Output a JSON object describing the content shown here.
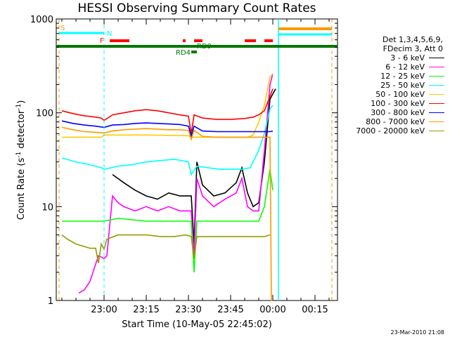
{
  "chart_data": {
    "type": "line",
    "title": "HESSI Observing Summary Count Rates",
    "xlabel": "Start Time (10-May-05 22:45:02)",
    "ylabel_main": "Count Rate (s",
    "ylabel_sup1": "-1",
    "ylabel_mid": " detector",
    "ylabel_sup2": "-1",
    "ylabel_end": ")",
    "yscale": "log",
    "ylim": [
      1,
      1000
    ],
    "y_ticks": [
      "1",
      "10",
      "100",
      "1000"
    ],
    "xlim_minutes": [
      -2,
      98
    ],
    "x_ticks": [
      {
        "m": 15,
        "label": "23:00"
      },
      {
        "m": 30,
        "label": "23:15"
      },
      {
        "m": 45,
        "label": "23:30"
      },
      {
        "m": 60,
        "label": "23:45"
      },
      {
        "m": 75,
        "label": "00:00"
      },
      {
        "m": 90,
        "label": "00:15"
      }
    ],
    "legend_header": [
      "Det 1,3,4,5,6,9,",
      "FDecim 3, Att 0"
    ],
    "series": [
      {
        "name": "3 - 6 keV",
        "color": "#000000",
        "points": [
          [
            18,
            22
          ],
          [
            22,
            18
          ],
          [
            26,
            15
          ],
          [
            30,
            13
          ],
          [
            34,
            12
          ],
          [
            38,
            14
          ],
          [
            42,
            13
          ],
          [
            46,
            13
          ],
          [
            47,
            4
          ],
          [
            48,
            30
          ],
          [
            50,
            17
          ],
          [
            54,
            13
          ],
          [
            58,
            14
          ],
          [
            62,
            18
          ],
          [
            64,
            26
          ],
          [
            66,
            14
          ],
          [
            68,
            10
          ],
          [
            70,
            11
          ],
          [
            72,
            30
          ],
          [
            74,
            140
          ],
          [
            76,
            180
          ]
        ]
      },
      {
        "name": "6 - 12 keV",
        "color": "#ff00ff",
        "points": [
          [
            6,
            1.2
          ],
          [
            8,
            1.3
          ],
          [
            10,
            1.6
          ],
          [
            13,
            3
          ],
          [
            15,
            2.8
          ],
          [
            16,
            3
          ],
          [
            18,
            13
          ],
          [
            20,
            11
          ],
          [
            22,
            10
          ],
          [
            26,
            9
          ],
          [
            30,
            10
          ],
          [
            34,
            9
          ],
          [
            38,
            10
          ],
          [
            42,
            9
          ],
          [
            46,
            9
          ],
          [
            47,
            3
          ],
          [
            48,
            20
          ],
          [
            50,
            13
          ],
          [
            54,
            10
          ],
          [
            58,
            12
          ],
          [
            62,
            14
          ],
          [
            64,
            20
          ],
          [
            66,
            10
          ],
          [
            68,
            9
          ],
          [
            70,
            9
          ],
          [
            72,
            40
          ],
          [
            74,
            200
          ],
          [
            75,
            260
          ]
        ]
      },
      {
        "name": "12 - 25 keV",
        "color": "#00ff00",
        "points": [
          [
            0,
            7
          ],
          [
            15,
            7
          ],
          [
            20,
            7.5
          ],
          [
            30,
            7
          ],
          [
            40,
            7
          ],
          [
            46,
            7
          ],
          [
            47,
            2
          ],
          [
            48,
            7
          ],
          [
            55,
            7
          ],
          [
            60,
            7
          ],
          [
            65,
            7
          ],
          [
            70,
            7
          ],
          [
            72,
            10
          ],
          [
            74,
            25
          ],
          [
            75,
            15
          ]
        ]
      },
      {
        "name": "25 - 50 keV",
        "color": "#00ffff",
        "points": [
          [
            0,
            33
          ],
          [
            5,
            30
          ],
          [
            10,
            28
          ],
          [
            14,
            26
          ],
          [
            15,
            25
          ],
          [
            20,
            27
          ],
          [
            25,
            28
          ],
          [
            30,
            30
          ],
          [
            35,
            31
          ],
          [
            40,
            32
          ],
          [
            45,
            30
          ],
          [
            46,
            22
          ],
          [
            48,
            27
          ],
          [
            52,
            26
          ],
          [
            56,
            25
          ],
          [
            60,
            25
          ],
          [
            64,
            25
          ],
          [
            67,
            26
          ],
          [
            70,
            40
          ],
          [
            72,
            60
          ],
          [
            74,
            110
          ],
          [
            75,
            120
          ]
        ]
      },
      {
        "name": "50 - 100 keV",
        "color": "#ffcc00",
        "points": [
          [
            0,
            55
          ],
          [
            14,
            55
          ],
          [
            15,
            58
          ],
          [
            30,
            58
          ],
          [
            45,
            57
          ],
          [
            46,
            55
          ],
          [
            48,
            55
          ],
          [
            60,
            55
          ],
          [
            66,
            55
          ],
          [
            68,
            58
          ],
          [
            70,
            80
          ],
          [
            72,
            120
          ],
          [
            74,
            240
          ],
          [
            75,
            260
          ]
        ]
      },
      {
        "name": "100 - 300 keV",
        "color": "#ff0000",
        "points": [
          [
            0,
            105
          ],
          [
            4,
            98
          ],
          [
            8,
            93
          ],
          [
            12,
            90
          ],
          [
            14,
            88
          ],
          [
            15,
            83
          ],
          [
            18,
            95
          ],
          [
            22,
            100
          ],
          [
            26,
            105
          ],
          [
            30,
            108
          ],
          [
            34,
            105
          ],
          [
            38,
            100
          ],
          [
            42,
            95
          ],
          [
            45,
            92
          ],
          [
            46,
            60
          ],
          [
            47,
            95
          ],
          [
            50,
            88
          ],
          [
            55,
            85
          ],
          [
            60,
            85
          ],
          [
            65,
            87
          ],
          [
            68,
            90
          ],
          [
            70,
            95
          ],
          [
            72,
            105
          ],
          [
            74,
            150
          ],
          [
            75,
            180
          ]
        ]
      },
      {
        "name": "300 - 800 keV",
        "color": "#0000ff",
        "points": [
          [
            0,
            82
          ],
          [
            4,
            77
          ],
          [
            8,
            74
          ],
          [
            12,
            72
          ],
          [
            15,
            70
          ],
          [
            18,
            74
          ],
          [
            22,
            75
          ],
          [
            26,
            77
          ],
          [
            30,
            78
          ],
          [
            34,
            77
          ],
          [
            38,
            76
          ],
          [
            42,
            75
          ],
          [
            45,
            72
          ],
          [
            46,
            57
          ],
          [
            47,
            72
          ],
          [
            50,
            64
          ],
          [
            55,
            63
          ],
          [
            60,
            63
          ],
          [
            65,
            63
          ],
          [
            70,
            63
          ],
          [
            72,
            63
          ],
          [
            74,
            63
          ],
          [
            75,
            64
          ]
        ]
      },
      {
        "name": "800 - 7000 keV",
        "color": "#ff9900",
        "points": [
          [
            0,
            70
          ],
          [
            4,
            66
          ],
          [
            8,
            63
          ],
          [
            12,
            62
          ],
          [
            15,
            61
          ],
          [
            18,
            64
          ],
          [
            22,
            66
          ],
          [
            26,
            67
          ],
          [
            30,
            68
          ],
          [
            34,
            67
          ],
          [
            38,
            66
          ],
          [
            42,
            66
          ],
          [
            45,
            65
          ],
          [
            46,
            52
          ],
          [
            47,
            65
          ],
          [
            50,
            56
          ],
          [
            55,
            55
          ],
          [
            60,
            55
          ],
          [
            65,
            55
          ],
          [
            70,
            55
          ],
          [
            72,
            55
          ],
          [
            74,
            55
          ],
          [
            74.5,
            1
          ],
          [
            75,
            1
          ]
        ]
      },
      {
        "name": "7000 - 20000 keV",
        "color": "#999900",
        "points": [
          [
            0,
            5
          ],
          [
            2,
            4.5
          ],
          [
            5,
            4
          ],
          [
            10,
            3.6
          ],
          [
            12,
            3.6
          ],
          [
            13,
            2.5
          ],
          [
            14,
            4
          ],
          [
            15,
            3.5
          ],
          [
            16,
            4.5
          ],
          [
            20,
            5
          ],
          [
            25,
            5
          ],
          [
            30,
            5
          ],
          [
            35,
            4.8
          ],
          [
            40,
            4.8
          ],
          [
            44,
            5
          ],
          [
            46,
            4.8
          ],
          [
            47,
            2.8
          ],
          [
            48,
            4.8
          ],
          [
            55,
            4.8
          ],
          [
            60,
            4.8
          ],
          [
            65,
            4.8
          ],
          [
            70,
            4.8
          ],
          [
            72,
            4.8
          ],
          [
            74,
            5
          ]
        ]
      }
    ],
    "flags": {
      "S_label": "S",
      "N_label": "N",
      "F_label": "F",
      "RD9_label": "RD9",
      "RD4_label": "RD4"
    }
  },
  "timestamp": "23-Mar-2010 21:08"
}
